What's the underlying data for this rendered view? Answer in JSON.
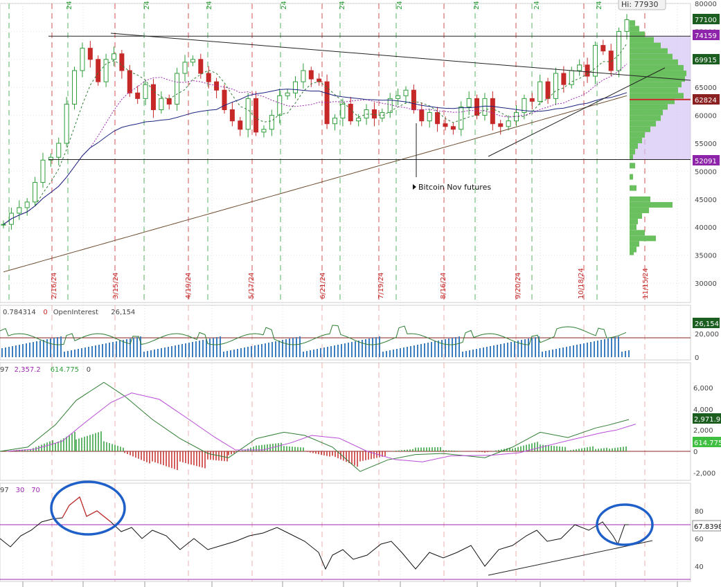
{
  "hi_label": "Hi: 77930",
  "annotation": "Bitcoin Nov futures",
  "colors": {
    "up": "#2e9e3a",
    "down": "#c62828",
    "price_tag_last": "#1b5e20",
    "sma_green": "#2e7d32",
    "sma_purple": "#9c27b0",
    "sma_blue": "#1a237e",
    "sma_brown": "#6d4c2f",
    "macd": "#2e7d32",
    "signal": "#b84bd6",
    "rsi_line": "#111111",
    "rsi_overbought": "#c62828",
    "circle": "#1f5fc8",
    "volume_profile": "#6abf5e",
    "value_area": "#d6c5f5",
    "oi_line": "#2e7d32",
    "volume_bar": "#3b7dbf",
    "band_line": "#9c27b0"
  },
  "chart_data": [
    {
      "type": "candlestick",
      "panel": "price",
      "y_ticks": [
        "80000",
        "75000",
        "70000",
        "65000",
        "60000",
        "55000",
        "50000",
        "45000",
        "40000",
        "35000",
        "30000"
      ],
      "ylim": [
        28000,
        80500
      ],
      "x_date_labels": [
        "2/16/24",
        "3/15/24",
        "4/19/24",
        "5/17/24",
        "6/21/24",
        "7/19/24",
        "8/16/24",
        "9/20/24",
        "10/18/24",
        "11/15/24"
      ],
      "top_partial_labels": [
        "24",
        "24",
        "24",
        "24",
        "24",
        "24",
        "24",
        "24",
        "24"
      ],
      "price_tags": [
        "77100",
        "74159",
        "69915",
        "62824",
        "52091"
      ],
      "horizontal_levels": [
        74159,
        52091
      ],
      "trendlines": [
        "descending resistance from 3/15/24 high",
        "rising support from 9/6/24 low"
      ],
      "close_path": [
        [
          0,
          40500
        ],
        [
          4,
          42500
        ],
        [
          8,
          43500
        ],
        [
          12,
          44500
        ],
        [
          16,
          48000
        ],
        [
          20,
          52000
        ],
        [
          24,
          52500
        ],
        [
          28,
          55000
        ],
        [
          32,
          62000
        ],
        [
          36,
          68000
        ],
        [
          40,
          72000
        ],
        [
          44,
          70000
        ],
        [
          48,
          66000
        ],
        [
          52,
          70000
        ],
        [
          56,
          71000
        ],
        [
          60,
          68000
        ],
        [
          64,
          64000
        ],
        [
          68,
          63000
        ],
        [
          72,
          65500
        ],
        [
          76,
          61000
        ],
        [
          80,
          63000
        ],
        [
          84,
          62000
        ],
        [
          88,
          67500
        ],
        [
          92,
          69500
        ],
        [
          96,
          70000
        ],
        [
          100,
          67500
        ],
        [
          104,
          66000
        ],
        [
          108,
          64500
        ],
        [
          112,
          61000
        ],
        [
          116,
          59000
        ],
        [
          120,
          57500
        ],
        [
          124,
          63000
        ],
        [
          128,
          57000
        ],
        [
          132,
          57500
        ],
        [
          136,
          60000
        ],
        [
          140,
          63500
        ],
        [
          144,
          64000
        ],
        [
          148,
          66000
        ],
        [
          152,
          68000
        ],
        [
          156,
          66500
        ],
        [
          160,
          66000
        ],
        [
          164,
          58500
        ],
        [
          168,
          59500
        ],
        [
          172,
          62000
        ],
        [
          176,
          59000
        ],
        [
          180,
          59500
        ],
        [
          184,
          61000
        ],
        [
          188,
          59500
        ],
        [
          192,
          60500
        ],
        [
          196,
          63000
        ],
        [
          200,
          63500
        ],
        [
          204,
          64500
        ],
        [
          208,
          61000
        ],
        [
          212,
          59000
        ],
        [
          216,
          60500
        ],
        [
          220,
          58500
        ],
        [
          224,
          58000
        ],
        [
          228,
          57500
        ],
        [
          232,
          61500
        ],
        [
          236,
          63000
        ],
        [
          240,
          60000
        ],
        [
          244,
          63000
        ],
        [
          248,
          58500
        ],
        [
          252,
          58000
        ],
        [
          256,
          59000
        ],
        [
          260,
          60500
        ],
        [
          264,
          63000
        ],
        [
          268,
          62500
        ],
        [
          272,
          66000
        ],
        [
          276,
          63000
        ],
        [
          280,
          67500
        ],
        [
          284,
          65500
        ],
        [
          288,
          68000
        ],
        [
          292,
          69000
        ],
        [
          296,
          67000
        ],
        [
          300,
          72500
        ],
        [
          304,
          71500
        ],
        [
          308,
          68000
        ],
        [
          312,
          75000
        ],
        [
          316,
          77100
        ]
      ],
      "oi_panel": {
        "legend": [
          "0.784314",
          "0",
          "OpenInterest",
          "26,154"
        ],
        "y_ticks": [
          "20,000",
          "0"
        ],
        "last_tag": "26,154"
      },
      "macd_panel": {
        "legend": [
          "97",
          "2,357.2",
          "614.775",
          "0"
        ],
        "y_ticks": [
          "6,000",
          "4,000",
          "2,000",
          "0",
          "-2,000"
        ],
        "tags": [
          "2,971.9",
          "614.775"
        ]
      },
      "rsi_panel": {
        "legend": [
          "97",
          "30",
          "70"
        ],
        "y_ticks": [
          "80",
          "60",
          "40"
        ],
        "last_tag": "67.8398",
        "overbought_level": 70,
        "oversold_level": 30
      }
    }
  ]
}
